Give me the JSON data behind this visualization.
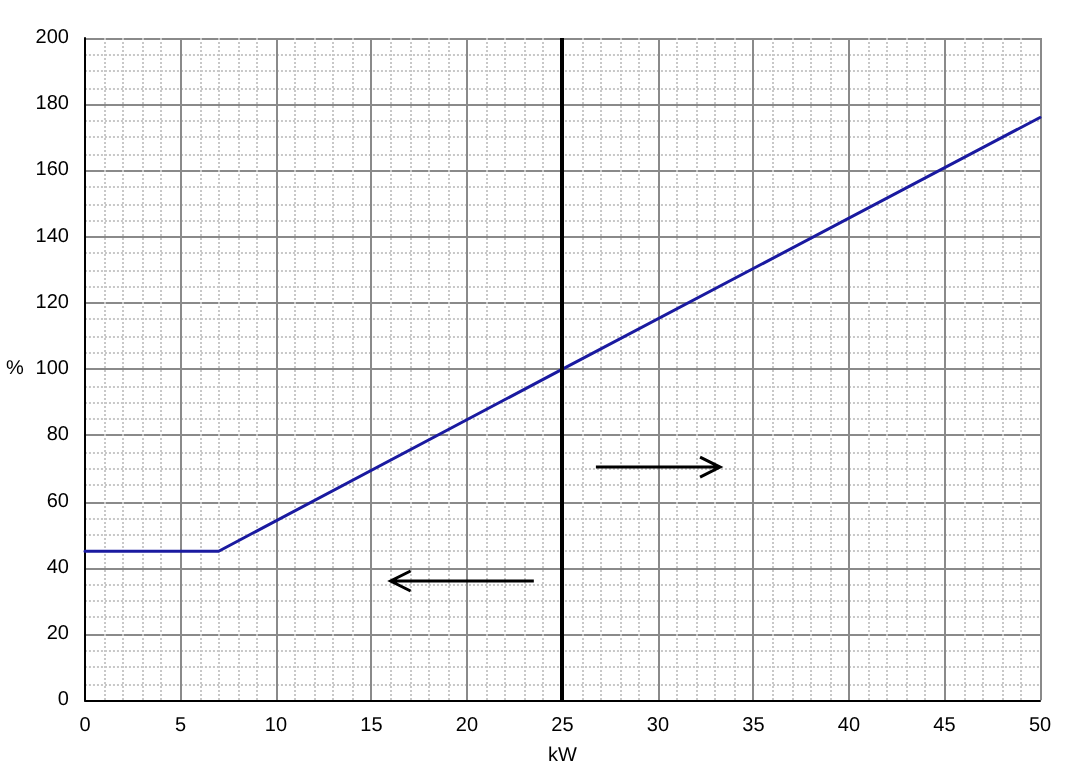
{
  "chart_data": {
    "type": "line",
    "xlabel": "kW",
    "ylabel": "%",
    "x": [
      0,
      7,
      25,
      50
    ],
    "series": [
      {
        "color": "#1a1aa0",
        "values": [
          45,
          45,
          100,
          176
        ]
      }
    ],
    "xlim": [
      0,
      50
    ],
    "xticks": [
      0,
      5,
      10,
      15,
      20,
      25,
      30,
      35,
      40,
      45,
      50
    ],
    "ylim": [
      0,
      200
    ],
    "yticks": [
      0,
      20,
      40,
      60,
      80,
      100,
      120,
      140,
      160,
      180,
      200
    ],
    "grid": true,
    "marker": "none",
    "line_style": "solid",
    "ref_lines": [
      {
        "axis": "x",
        "value": 25,
        "color": "#000000"
      }
    ]
  }
}
